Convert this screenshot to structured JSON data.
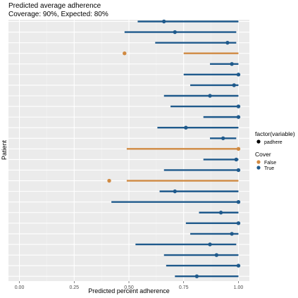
{
  "chart_data": {
    "type": "scatter",
    "title": "Predicted average adherence",
    "subtitle": "Coverage: 90%, Expected: 80%",
    "xlabel": "Predicted percent adherence",
    "ylabel": "Patient",
    "xlim": [
      -0.05,
      1.05
    ],
    "x_ticks": [
      0,
      0.25,
      0.5,
      0.75,
      1
    ],
    "x_tick_labels": [
      "0.00",
      "0.25",
      "0.50",
      "0.75",
      "1.00"
    ],
    "grid": true,
    "legend_placement": "right",
    "legend_shape": {
      "title": "factor(variable)",
      "items": [
        {
          "label": "padhere"
        }
      ]
    },
    "legend_color": {
      "title": "Cover",
      "items": [
        {
          "label": "False",
          "color": "#d08a42"
        },
        {
          "label": "True",
          "color": "#1f5a8c"
        }
      ]
    },
    "colors": {
      "False": "#d08a42",
      "True": "#1f5a8c"
    },
    "patients": [
      {
        "low": 0.54,
        "high": 1.0,
        "point": 0.66,
        "covered": true
      },
      {
        "low": 0.48,
        "high": 0.99,
        "point": 0.71,
        "covered": true
      },
      {
        "low": 0.62,
        "high": 0.99,
        "point": 0.95,
        "covered": true
      },
      {
        "low": 0.75,
        "high": 1.0,
        "point": 0.48,
        "covered": false
      },
      {
        "low": 0.87,
        "high": 1.0,
        "point": 0.97,
        "covered": true
      },
      {
        "low": 0.75,
        "high": 1.0,
        "point": 1.0,
        "covered": true
      },
      {
        "low": 0.78,
        "high": 1.0,
        "point": 0.98,
        "covered": true
      },
      {
        "low": 0.66,
        "high": 1.0,
        "point": 0.87,
        "covered": true
      },
      {
        "low": 0.69,
        "high": 1.0,
        "point": 1.0,
        "covered": true
      },
      {
        "low": 0.84,
        "high": 1.0,
        "point": 1.0,
        "covered": true
      },
      {
        "low": 0.63,
        "high": 1.0,
        "point": 0.76,
        "covered": true
      },
      {
        "low": 0.87,
        "high": 0.99,
        "point": 0.93,
        "covered": true
      },
      {
        "low": 0.49,
        "high": 1.0,
        "point": 1.0,
        "covered": false
      },
      {
        "low": 0.84,
        "high": 1.0,
        "point": 0.99,
        "covered": true
      },
      {
        "low": 0.66,
        "high": 1.0,
        "point": 1.0,
        "covered": true
      },
      {
        "low": 0.49,
        "high": 1.0,
        "point": 0.41,
        "covered": false
      },
      {
        "low": 0.64,
        "high": 1.0,
        "point": 0.71,
        "covered": true
      },
      {
        "low": 0.42,
        "high": 1.0,
        "point": 1.0,
        "covered": true
      },
      {
        "low": 0.82,
        "high": 1.0,
        "point": 0.92,
        "covered": true
      },
      {
        "low": 0.76,
        "high": 1.0,
        "point": 1.0,
        "covered": true
      },
      {
        "low": 0.78,
        "high": 1.0,
        "point": 0.97,
        "covered": true
      },
      {
        "low": 0.53,
        "high": 0.99,
        "point": 0.87,
        "covered": true
      },
      {
        "low": 0.66,
        "high": 1.0,
        "point": 0.9,
        "covered": true
      },
      {
        "low": 0.67,
        "high": 1.0,
        "point": 1.0,
        "covered": true
      },
      {
        "low": 0.71,
        "high": 1.0,
        "point": 0.81,
        "covered": true
      }
    ]
  }
}
